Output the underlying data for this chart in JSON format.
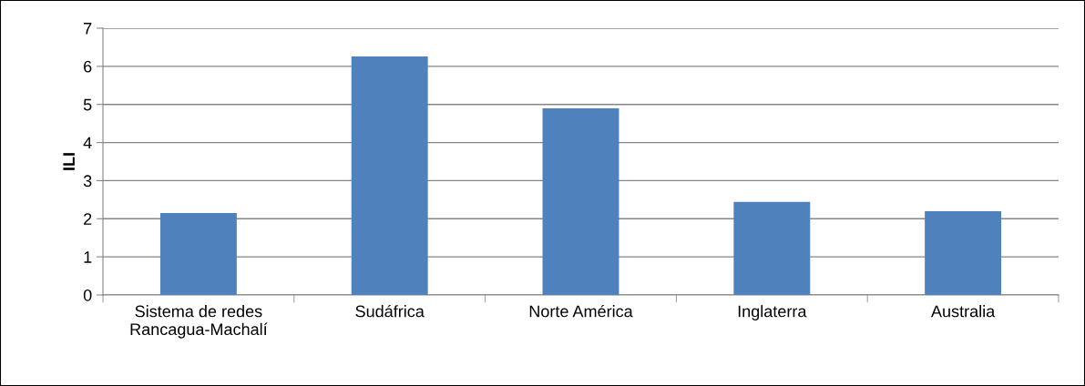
{
  "chart_data": {
    "type": "bar",
    "ylabel": "ILI",
    "categories": [
      "Sistema de redes\nRancagua-Machalí",
      "Sudáfrica",
      "Norte América",
      "Inglaterra",
      "Australia"
    ],
    "values": [
      2.15,
      6.26,
      4.9,
      2.44,
      2.2
    ],
    "color": "#4f81bd",
    "ylim": [
      0,
      7
    ],
    "yticks": [
      0,
      1,
      2,
      3,
      4,
      5,
      6,
      7
    ],
    "grid": "y",
    "legend": false
  }
}
